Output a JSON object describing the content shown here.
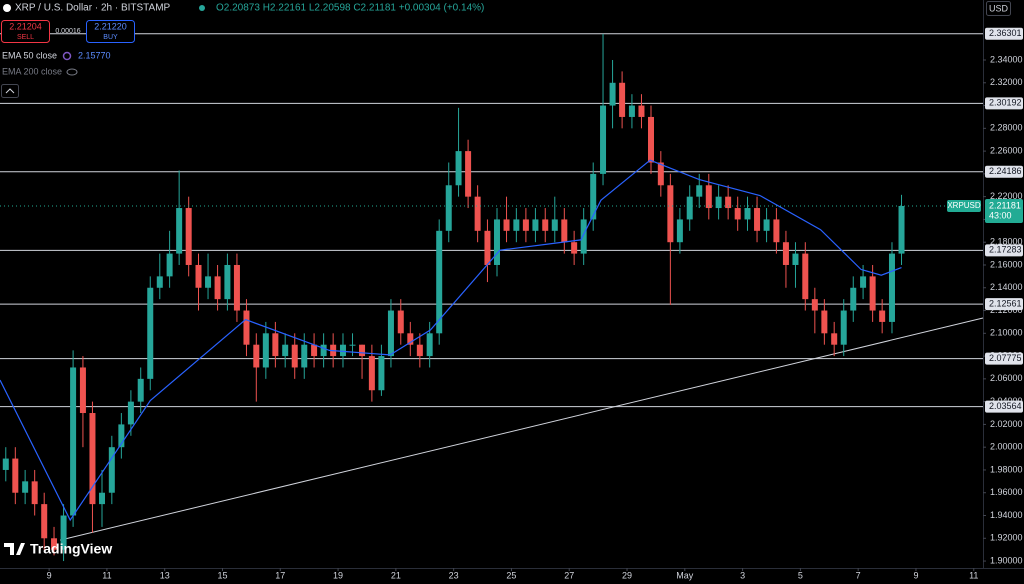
{
  "header": {
    "symbol": "XRP / U.S. Dollar · 2h · BITSTAMP",
    "ohlc": "O2.20873 H2.22161 L2.20598 C2.21181 +0.00304 (+0.14%)"
  },
  "trade": {
    "sell_price": "2.21204",
    "sell_label": "SELL",
    "spread": "0.00016",
    "buy_price": "2.21220",
    "buy_label": "BUY"
  },
  "indicators": [
    {
      "name": "EMA 50 close",
      "value": "2.15770"
    },
    {
      "name": "EMA 200 close"
    }
  ],
  "currency": "USD",
  "logo": "TradingView",
  "chart_data": {
    "type": "candlestick",
    "up_color": "#26a69a",
    "down_color": "#ef5350",
    "xlim": [
      7.3,
      41.32
    ],
    "ylim": [
      1.8939,
      2.3927
    ],
    "grid": false,
    "xticks": [
      9,
      11,
      13,
      15,
      17,
      19,
      21,
      23,
      25,
      27,
      29,
      {
        "value": 31,
        "label": "May"
      },
      {
        "value": 33,
        "label": "3"
      },
      {
        "value": 35,
        "label": "5"
      },
      {
        "value": 37,
        "label": "7"
      },
      {
        "value": 39,
        "label": "9"
      },
      {
        "value": 41,
        "label": "11"
      }
    ],
    "yticks": [
      {
        "value": 1.9,
        "label": "1.90000"
      },
      {
        "value": 1.92,
        "label": "1.92000"
      },
      {
        "value": 1.94,
        "label": "1.94000"
      },
      {
        "value": 1.96,
        "label": "1.96000"
      },
      {
        "value": 1.98,
        "label": "1.98000"
      },
      {
        "value": 2.0,
        "label": "2.00000"
      },
      {
        "value": 2.02,
        "label": "2.02000"
      },
      {
        "value": 2.04,
        "label": "2.04000"
      },
      {
        "value": 2.06,
        "label": "2.06000"
      },
      {
        "value": 2.08,
        "label": "2.08000"
      },
      {
        "value": 2.1,
        "label": "2.10000"
      },
      {
        "value": 2.12,
        "label": "2.12000"
      },
      {
        "value": 2.14,
        "label": "2.14000"
      },
      {
        "value": 2.16,
        "label": "2.16000"
      },
      {
        "value": 2.18,
        "label": "2.18000"
      },
      {
        "value": 2.2,
        "label": "2.20000"
      },
      {
        "value": 2.22,
        "label": "2.22000"
      },
      {
        "value": 2.24,
        "label": "2.24000"
      },
      {
        "value": 2.26,
        "label": "2.26000"
      },
      {
        "value": 2.28,
        "label": "2.28000"
      },
      {
        "value": 2.3,
        "label": "2.30000"
      },
      {
        "value": 2.32,
        "label": "2.32000"
      },
      {
        "value": 2.34,
        "label": "2.34000"
      }
    ],
    "x": [
      7.5,
      7.83,
      8.17,
      8.5,
      8.83,
      9.17,
      9.5,
      9.83,
      10.17,
      10.5,
      10.83,
      11.17,
      11.5,
      11.83,
      12.17,
      12.5,
      12.83,
      13.17,
      13.5,
      13.83,
      14.17,
      14.5,
      14.83,
      15.17,
      15.5,
      15.83,
      16.17,
      16.5,
      16.83,
      17.17,
      17.5,
      17.83,
      18.17,
      18.5,
      18.83,
      19.17,
      19.5,
      19.83,
      20.17,
      20.5,
      20.83,
      21.17,
      21.5,
      21.83,
      22.17,
      22.5,
      22.83,
      23.17,
      23.5,
      23.83,
      24.17,
      24.5,
      24.83,
      25.17,
      25.5,
      25.83,
      26.17,
      26.5,
      26.83,
      27.17,
      27.5,
      27.83,
      28.17,
      28.5,
      28.83,
      29.17,
      29.5,
      29.83,
      30.17,
      30.5,
      30.83,
      31.17,
      31.5,
      31.83,
      32.17,
      32.5,
      32.83,
      33.17,
      33.5,
      33.83,
      34.17,
      34.5,
      34.83,
      35.17,
      35.5,
      35.83,
      36.17,
      36.5,
      36.83,
      37.17,
      37.5,
      37.83,
      38.17,
      38.5
    ],
    "open": [
      1.98,
      1.99,
      1.96,
      1.97,
      1.95,
      1.92,
      1.91,
      1.94,
      2.07,
      2.03,
      1.95,
      1.96,
      2.0,
      2.02,
      2.04,
      2.06,
      2.14,
      2.15,
      2.17,
      2.21,
      2.16,
      2.14,
      2.15,
      2.13,
      2.16,
      2.12,
      2.09,
      2.07,
      2.1,
      2.08,
      2.09,
      2.07,
      2.09,
      2.08,
      2.09,
      2.08,
      2.09,
      2.09,
      2.08,
      2.05,
      2.08,
      2.12,
      2.1,
      2.09,
      2.08,
      2.1,
      2.19,
      2.23,
      2.26,
      2.22,
      2.19,
      2.16,
      2.2,
      2.19,
      2.2,
      2.19,
      2.2,
      2.19,
      2.2,
      2.18,
      2.17,
      2.2,
      2.24,
      2.3,
      2.32,
      2.29,
      2.3,
      2.29,
      2.25,
      2.23,
      2.18,
      2.2,
      2.22,
      2.23,
      2.21,
      2.22,
      2.21,
      2.2,
      2.21,
      2.19,
      2.2,
      2.18,
      2.16,
      2.17,
      2.13,
      2.12,
      2.1,
      2.09,
      2.12,
      2.14,
      2.15,
      2.12,
      2.11,
      2.17
    ],
    "high": [
      2.0,
      2.0,
      1.98,
      1.98,
      1.96,
      1.93,
      1.95,
      2.085,
      2.08,
      2.04,
      1.98,
      2.01,
      2.03,
      2.05,
      2.07,
      2.15,
      2.17,
      2.19,
      2.243,
      2.22,
      2.17,
      2.17,
      2.16,
      2.17,
      2.17,
      2.13,
      2.1,
      2.11,
      2.11,
      2.1,
      2.1,
      2.1,
      2.1,
      2.1,
      2.1,
      2.1,
      2.1,
      2.09,
      2.09,
      2.09,
      2.13,
      2.13,
      2.11,
      2.1,
      2.11,
      2.2,
      2.25,
      2.298,
      2.27,
      2.23,
      2.2,
      2.21,
      2.22,
      2.21,
      2.21,
      2.21,
      2.21,
      2.22,
      2.21,
      2.19,
      2.21,
      2.25,
      2.363,
      2.34,
      2.33,
      2.31,
      2.31,
      2.3,
      2.26,
      2.24,
      2.21,
      2.23,
      2.24,
      2.24,
      2.23,
      2.23,
      2.22,
      2.22,
      2.22,
      2.21,
      2.21,
      2.19,
      2.18,
      2.18,
      2.14,
      2.13,
      2.11,
      2.13,
      2.15,
      2.16,
      2.16,
      2.13,
      2.18,
      2.22161
    ],
    "low": [
      1.97,
      1.95,
      1.95,
      1.94,
      1.91,
      1.905,
      1.9,
      1.93,
      2.0,
      1.925,
      1.93,
      1.95,
      1.99,
      2.01,
      2.03,
      2.05,
      2.13,
      2.14,
      2.16,
      2.15,
      2.12,
      2.13,
      2.12,
      2.12,
      2.11,
      2.08,
      2.04,
      2.06,
      2.07,
      2.07,
      2.06,
      2.06,
      2.07,
      2.07,
      2.07,
      2.07,
      2.08,
      2.06,
      2.04,
      2.045,
      2.07,
      2.09,
      2.08,
      2.07,
      2.07,
      2.09,
      2.18,
      2.22,
      2.21,
      2.18,
      2.145,
      2.15,
      2.18,
      2.18,
      2.18,
      2.18,
      2.18,
      2.18,
      2.17,
      2.16,
      2.16,
      2.19,
      2.23,
      2.28,
      2.28,
      2.28,
      2.28,
      2.24,
      2.22,
      2.125,
      2.17,
      2.19,
      2.21,
      2.2,
      2.2,
      2.2,
      2.19,
      2.19,
      2.18,
      2.18,
      2.17,
      2.14,
      2.14,
      2.12,
      2.1,
      2.09,
      2.08,
      2.08,
      2.11,
      2.13,
      2.11,
      2.1,
      2.1,
      2.16
    ],
    "close": [
      1.99,
      1.96,
      1.97,
      1.95,
      1.92,
      1.91,
      1.94,
      2.07,
      2.03,
      1.95,
      1.96,
      2.0,
      2.02,
      2.04,
      2.06,
      2.14,
      2.15,
      2.17,
      2.21,
      2.16,
      2.14,
      2.15,
      2.13,
      2.16,
      2.12,
      2.09,
      2.07,
      2.1,
      2.08,
      2.09,
      2.07,
      2.09,
      2.08,
      2.09,
      2.08,
      2.09,
      2.09,
      2.08,
      2.05,
      2.08,
      2.12,
      2.1,
      2.09,
      2.08,
      2.1,
      2.19,
      2.23,
      2.26,
      2.22,
      2.19,
      2.16,
      2.2,
      2.19,
      2.2,
      2.19,
      2.2,
      2.19,
      2.2,
      2.18,
      2.17,
      2.2,
      2.24,
      2.3,
      2.32,
      2.29,
      2.3,
      2.29,
      2.25,
      2.23,
      2.18,
      2.2,
      2.22,
      2.23,
      2.21,
      2.22,
      2.21,
      2.2,
      2.21,
      2.19,
      2.2,
      2.18,
      2.16,
      2.17,
      2.13,
      2.12,
      2.1,
      2.09,
      2.12,
      2.14,
      2.15,
      2.12,
      2.11,
      2.17,
      2.21181
    ],
    "ema": {
      "color": "#2962ff",
      "x": [
        7.3,
        9.73,
        12.5,
        15.8,
        18.7,
        20.8,
        22.2,
        24.6,
        27.4,
        28.1,
        29.8,
        31.5,
        33.6,
        35.7,
        37.1,
        37.8,
        38.5
      ],
      "values": [
        2.059,
        1.936,
        2.041,
        2.112,
        2.085,
        2.081,
        2.103,
        2.173,
        2.182,
        2.217,
        2.252,
        2.235,
        2.221,
        2.191,
        2.156,
        2.151,
        2.1577
      ]
    },
    "levels": [
      2.36301,
      2.30192,
      2.24186,
      2.17283,
      2.12561,
      2.07775,
      2.03564
    ],
    "trendline": {
      "x": [
        9.38,
        41.32
      ],
      "y": [
        1.9184,
        2.1134
      ]
    },
    "last_price": {
      "symbol": "XRPUSD",
      "value": 2.21181,
      "countdown": "43:00",
      "color": "#22ab94"
    }
  }
}
